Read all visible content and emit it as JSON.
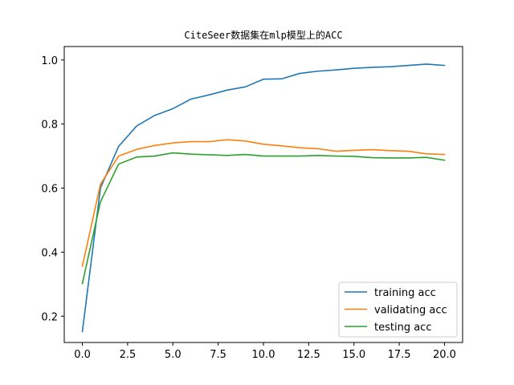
{
  "chart_data": {
    "type": "line",
    "title": "CiteSeer数据集在mlp模型上的ACC",
    "xlabel": "",
    "ylabel": "",
    "xlim": [
      -1.0,
      21.0
    ],
    "ylim": [
      0.118,
      1.042
    ],
    "xticks": [
      0.0,
      2.5,
      5.0,
      7.5,
      10.0,
      12.5,
      15.0,
      17.5,
      20.0
    ],
    "xtick_labels": [
      "0.0",
      "2.5",
      "5.0",
      "7.5",
      "10.0",
      "12.5",
      "15.0",
      "17.5",
      "20.0"
    ],
    "yticks": [
      0.2,
      0.4,
      0.6,
      0.8,
      1.0
    ],
    "ytick_labels": [
      "0.2",
      "0.4",
      "0.6",
      "0.8",
      "1.0"
    ],
    "grid": false,
    "legend_position": "lower-right",
    "x": [
      0,
      1,
      2,
      3,
      4,
      5,
      6,
      7,
      8,
      9,
      10,
      11,
      12,
      13,
      14,
      15,
      16,
      17,
      18,
      19,
      20
    ],
    "series": [
      {
        "name": "training acc",
        "color": "#1f77b4",
        "values": [
          0.152,
          0.6,
          0.73,
          0.794,
          0.827,
          0.848,
          0.878,
          0.891,
          0.906,
          0.916,
          0.94,
          0.941,
          0.958,
          0.965,
          0.969,
          0.974,
          0.977,
          0.979,
          0.983,
          0.987,
          0.983
        ]
      },
      {
        "name": "validating acc",
        "color": "#ff7f0e",
        "values": [
          0.356,
          0.612,
          0.7,
          0.721,
          0.733,
          0.741,
          0.745,
          0.745,
          0.751,
          0.747,
          0.737,
          0.732,
          0.726,
          0.723,
          0.715,
          0.718,
          0.72,
          0.717,
          0.715,
          0.707,
          0.705
        ]
      },
      {
        "name": "testing acc",
        "color": "#2ca02c",
        "values": [
          0.302,
          0.557,
          0.675,
          0.697,
          0.7,
          0.71,
          0.706,
          0.704,
          0.702,
          0.705,
          0.7,
          0.7,
          0.7,
          0.702,
          0.7,
          0.699,
          0.695,
          0.694,
          0.694,
          0.696,
          0.687
        ]
      }
    ]
  }
}
